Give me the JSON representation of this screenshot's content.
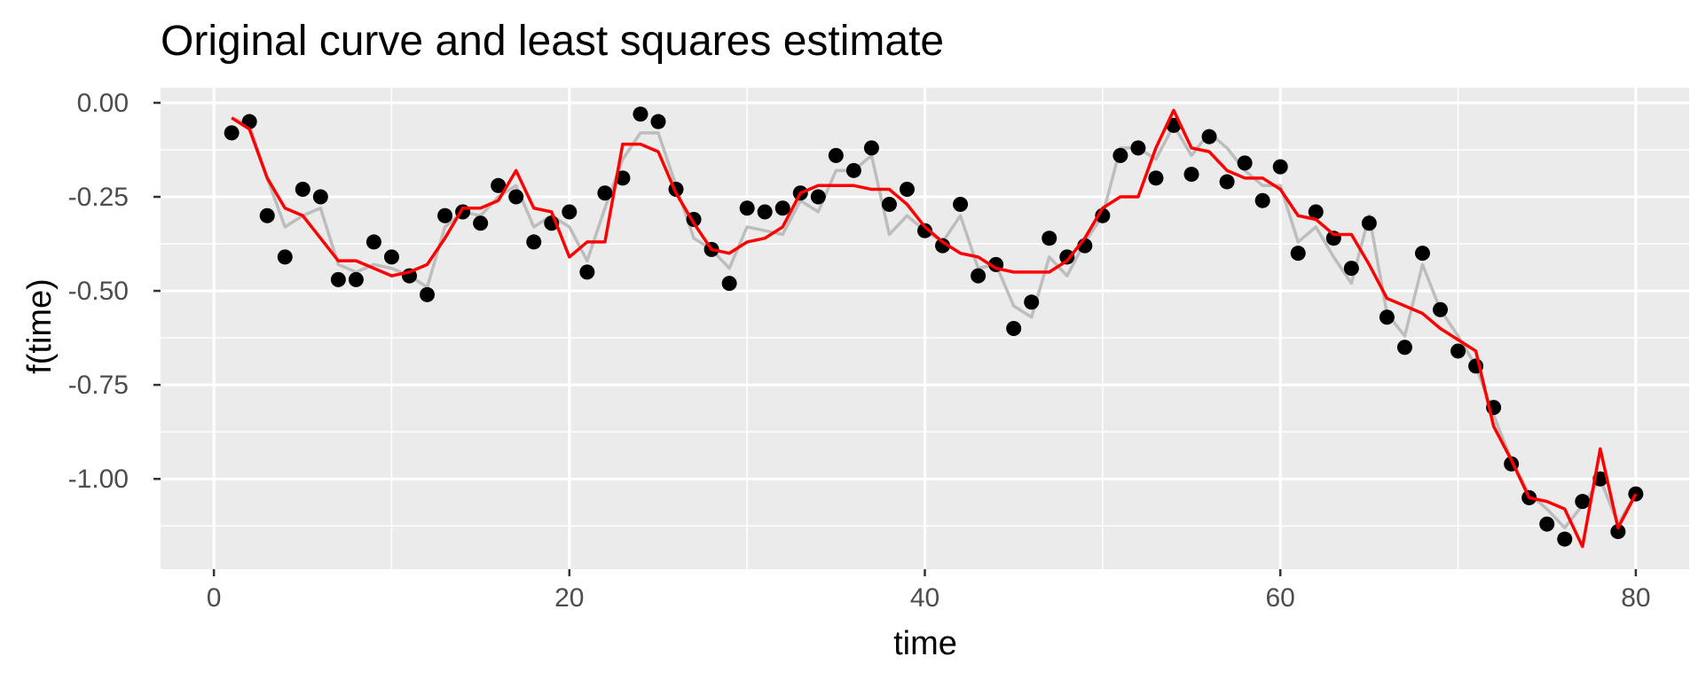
{
  "chart_data": {
    "type": "line",
    "title": "Original curve and least squares estimate",
    "xlabel": "time",
    "ylabel": "f(time)",
    "xlim": [
      -3,
      83
    ],
    "ylim": [
      -1.24,
      0.04
    ],
    "x_ticks": [
      0,
      20,
      40,
      60,
      80
    ],
    "x_tick_labels": [
      "0",
      "20",
      "40",
      "60",
      "80"
    ],
    "y_ticks": [
      0,
      -0.25,
      -0.5,
      -0.75,
      -1.0
    ],
    "y_tick_labels": [
      "0.00",
      "-0.25",
      "-0.50",
      "-0.75",
      "-1.00"
    ],
    "grid": true,
    "background": "#ebebeb",
    "colors": {
      "points": "#000000",
      "original_curve": "#bdbdbd",
      "estimate": "#ff0000"
    },
    "x": [
      1,
      2,
      3,
      4,
      5,
      6,
      7,
      8,
      9,
      10,
      11,
      12,
      13,
      14,
      15,
      16,
      17,
      18,
      19,
      20,
      21,
      22,
      23,
      24,
      25,
      26,
      27,
      28,
      29,
      30,
      31,
      32,
      33,
      34,
      35,
      36,
      37,
      38,
      39,
      40,
      41,
      42,
      43,
      44,
      45,
      46,
      47,
      48,
      49,
      50,
      51,
      52,
      53,
      54,
      55,
      56,
      57,
      58,
      59,
      60,
      61,
      62,
      63,
      64,
      65,
      66,
      67,
      68,
      69,
      70,
      71,
      72,
      73,
      74,
      75,
      76,
      77,
      78,
      79,
      80
    ],
    "series": [
      {
        "kind": "points",
        "values": [
          -0.08,
          -0.05,
          -0.3,
          -0.41,
          -0.23,
          -0.25,
          -0.47,
          -0.47,
          -0.37,
          -0.41,
          -0.46,
          -0.51,
          -0.3,
          -0.29,
          -0.32,
          -0.22,
          -0.25,
          -0.37,
          -0.32,
          -0.29,
          -0.45,
          -0.24,
          -0.2,
          -0.03,
          -0.05,
          -0.23,
          -0.31,
          -0.39,
          -0.48,
          -0.28,
          -0.29,
          -0.28,
          -0.24,
          -0.25,
          -0.14,
          -0.18,
          -0.12,
          -0.27,
          -0.23,
          -0.34,
          -0.38,
          -0.27,
          -0.46,
          -0.43,
          -0.6,
          -0.53,
          -0.36,
          -0.41,
          -0.38,
          -0.3,
          -0.14,
          -0.12,
          -0.2,
          -0.06,
          -0.19,
          -0.09,
          -0.21,
          -0.16,
          -0.26,
          -0.17,
          -0.4,
          -0.29,
          -0.36,
          -0.44,
          -0.32,
          -0.57,
          -0.65,
          -0.4,
          -0.55,
          -0.66,
          -0.7,
          -0.81,
          -0.96,
          -1.05,
          -1.12,
          -1.16,
          -1.06,
          -1.0,
          -1.14,
          -1.04
        ]
      },
      {
        "kind": "original",
        "values": [
          -0.04,
          -0.06,
          -0.2,
          -0.33,
          -0.3,
          -0.28,
          -0.43,
          -0.45,
          -0.43,
          -0.44,
          -0.46,
          -0.49,
          -0.33,
          -0.29,
          -0.3,
          -0.25,
          -0.22,
          -0.33,
          -0.3,
          -0.33,
          -0.42,
          -0.28,
          -0.15,
          -0.08,
          -0.08,
          -0.22,
          -0.36,
          -0.39,
          -0.44,
          -0.33,
          -0.34,
          -0.35,
          -0.26,
          -0.29,
          -0.18,
          -0.18,
          -0.14,
          -0.35,
          -0.3,
          -0.34,
          -0.37,
          -0.3,
          -0.44,
          -0.43,
          -0.54,
          -0.57,
          -0.41,
          -0.46,
          -0.37,
          -0.3,
          -0.12,
          -0.12,
          -0.15,
          -0.06,
          -0.14,
          -0.08,
          -0.12,
          -0.18,
          -0.22,
          -0.22,
          -0.37,
          -0.33,
          -0.41,
          -0.48,
          -0.3,
          -0.56,
          -0.62,
          -0.43,
          -0.55,
          -0.62,
          -0.7,
          -0.83,
          -0.95,
          -1.04,
          -1.08,
          -1.13,
          -1.07,
          -1.0,
          -1.12,
          -1.04
        ]
      },
      {
        "kind": "estimate",
        "values": [
          -0.04,
          -0.07,
          -0.2,
          -0.28,
          -0.3,
          -0.36,
          -0.42,
          -0.42,
          -0.44,
          -0.46,
          -0.45,
          -0.43,
          -0.36,
          -0.28,
          -0.28,
          -0.26,
          -0.18,
          -0.28,
          -0.29,
          -0.41,
          -0.37,
          -0.37,
          -0.11,
          -0.11,
          -0.13,
          -0.24,
          -0.32,
          -0.39,
          -0.4,
          -0.37,
          -0.36,
          -0.33,
          -0.24,
          -0.22,
          -0.22,
          -0.22,
          -0.23,
          -0.23,
          -0.27,
          -0.33,
          -0.37,
          -0.4,
          -0.41,
          -0.44,
          -0.45,
          -0.45,
          -0.45,
          -0.42,
          -0.36,
          -0.28,
          -0.25,
          -0.25,
          -0.12,
          -0.02,
          -0.12,
          -0.13,
          -0.18,
          -0.2,
          -0.2,
          -0.23,
          -0.3,
          -0.31,
          -0.35,
          -0.35,
          -0.43,
          -0.52,
          -0.54,
          -0.56,
          -0.6,
          -0.63,
          -0.66,
          -0.86,
          -0.95,
          -1.05,
          -1.06,
          -1.08,
          -1.18,
          -0.92,
          -1.13,
          -1.04
        ]
      }
    ]
  }
}
